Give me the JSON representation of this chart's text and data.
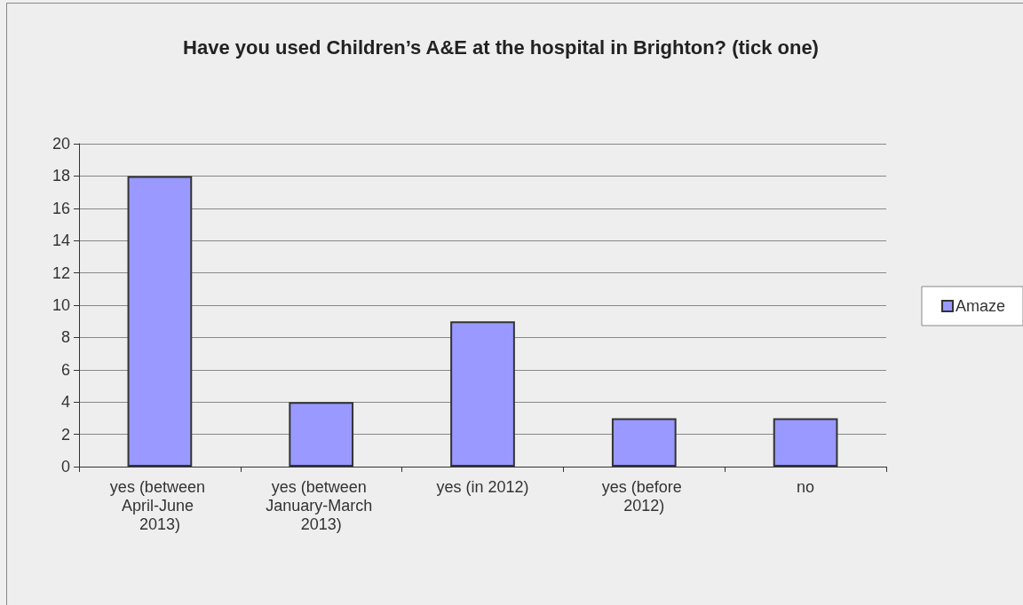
{
  "chart_data": {
    "type": "bar",
    "title": "Have you used Children’s A&E at the hospital in Brighton? (tick one)",
    "categories": [
      "yes (between April-June 2013)",
      "yes (between January-March 2013)",
      "yes (in 2012)",
      "yes (before 2012)",
      "no"
    ],
    "series": [
      {
        "name": "Amaze",
        "color": "#9999ff",
        "values": [
          18,
          4,
          9,
          3,
          3
        ]
      }
    ],
    "ylim": [
      0,
      20
    ],
    "yticks": [
      0,
      2,
      4,
      6,
      8,
      10,
      12,
      14,
      16,
      18,
      20
    ],
    "grid": "y",
    "legend": "right"
  }
}
